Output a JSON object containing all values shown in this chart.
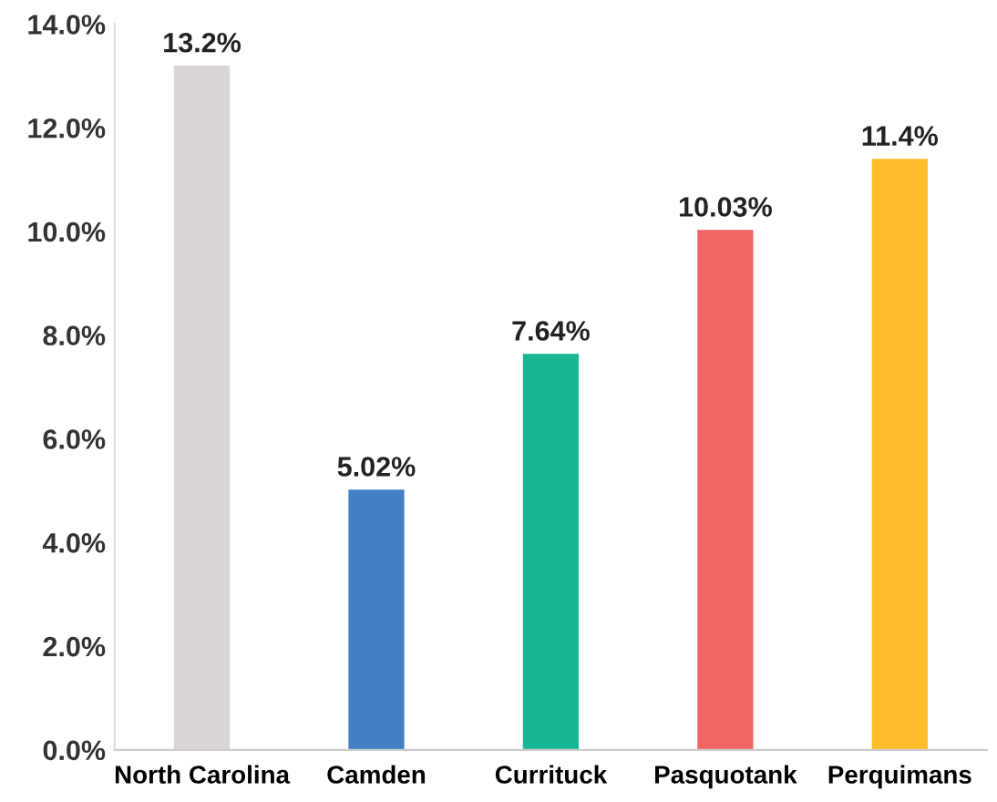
{
  "chart_data": {
    "type": "bar",
    "categories": [
      "North Carolina",
      "Camden",
      "Currituck",
      "Pasquotank",
      "Perquimans"
    ],
    "values": [
      13.2,
      5.02,
      7.64,
      10.03,
      11.4
    ],
    "colors": [
      "#d9d5d5",
      "#4480c6",
      "#17b794",
      "#f16562",
      "#fdbd2a"
    ],
    "value_labels": [
      "13.2%",
      "5.02%",
      "7.64%",
      "10.03%",
      "11.4%"
    ],
    "ylim": [
      0,
      14
    ],
    "yticks": [
      {
        "value": 0,
        "label": "0.0%"
      },
      {
        "value": 2,
        "label": "2.0%"
      },
      {
        "value": 4,
        "label": "4.0%"
      },
      {
        "value": 6,
        "label": "6.0%"
      },
      {
        "value": 8,
        "label": "8.0%"
      },
      {
        "value": 10,
        "label": "10.0%"
      },
      {
        "value": 12,
        "label": "12.0%"
      },
      {
        "value": 14,
        "label": "14.0%"
      }
    ],
    "grid": false,
    "legend": false
  }
}
